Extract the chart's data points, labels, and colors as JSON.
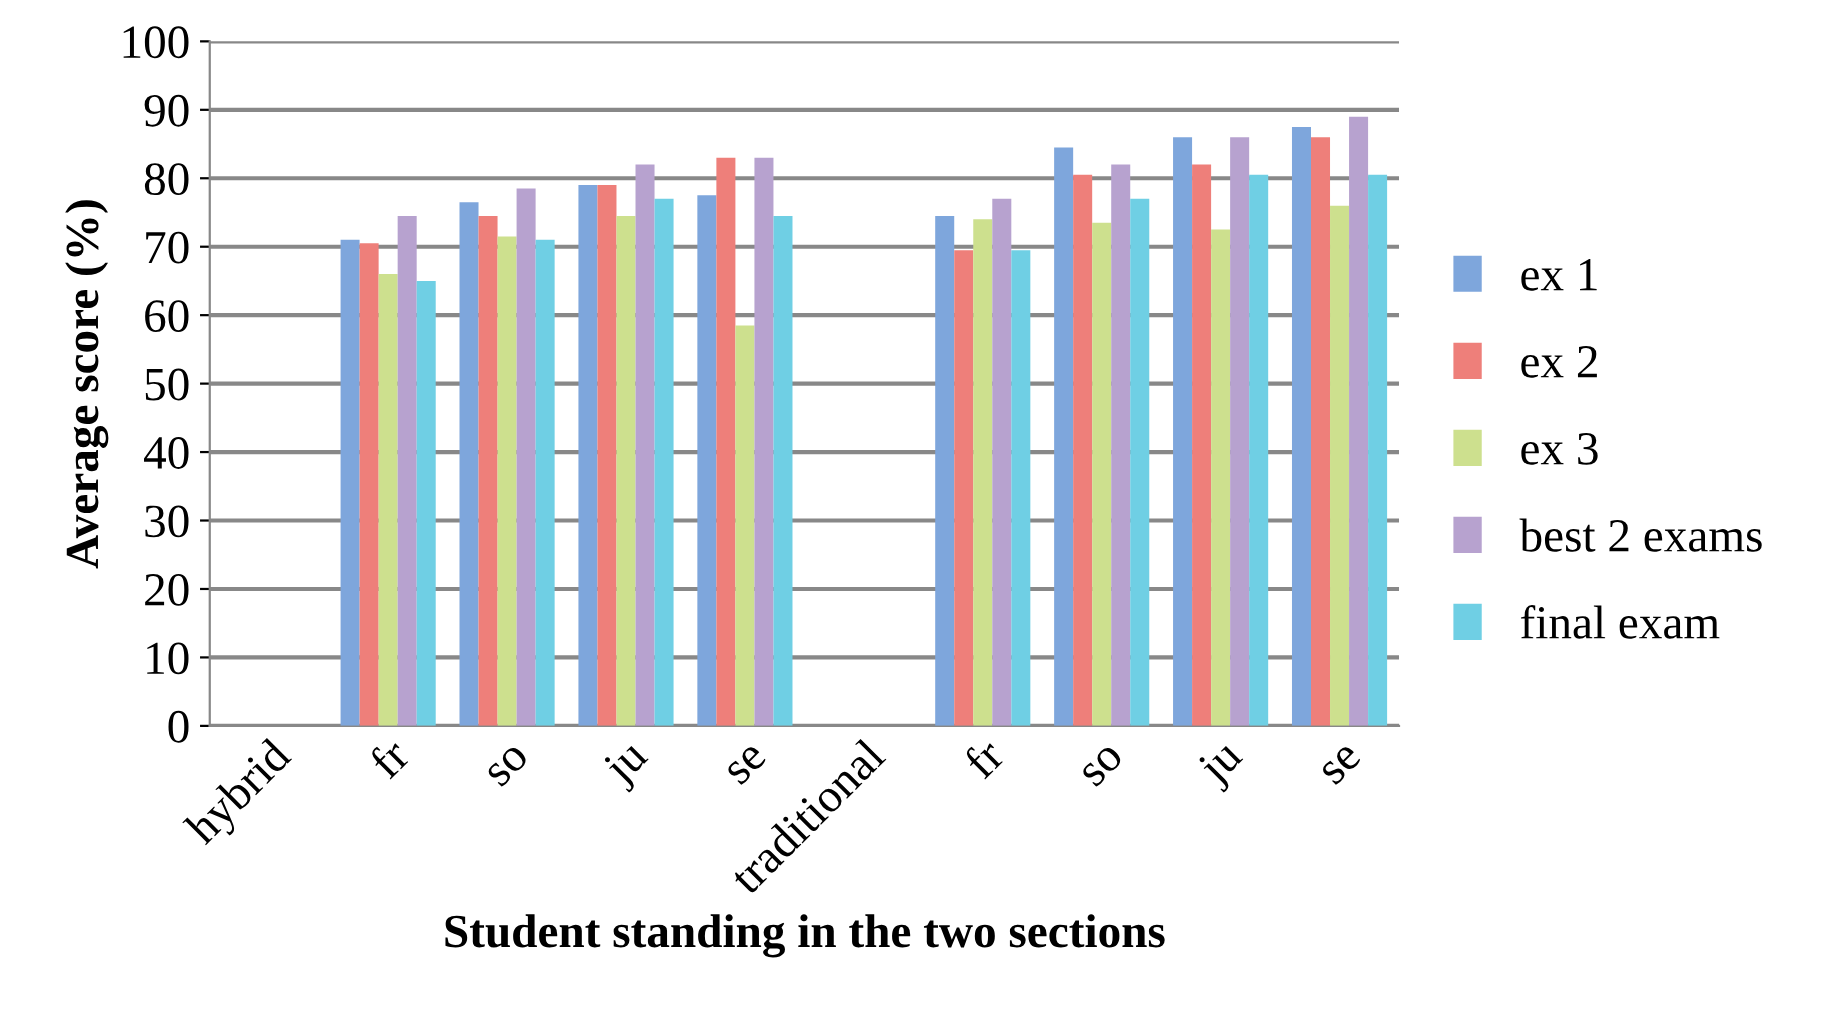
{
  "chart_data": {
    "type": "bar",
    "xlabel": "Student standing in the two sections",
    "ylabel": "Average score (%)",
    "categories": [
      "hybrid",
      "fr",
      "so",
      "ju",
      "se",
      "traditional",
      "fr",
      "so",
      "ju",
      "se"
    ],
    "series": [
      {
        "name": "ex 1",
        "color": "#7ea6dc",
        "values": [
          null,
          71,
          76.5,
          79,
          77.5,
          null,
          74.5,
          84.5,
          86,
          87.5
        ]
      },
      {
        "name": "ex 2",
        "color": "#ee7f7a",
        "values": [
          null,
          70.5,
          74.5,
          79,
          83,
          null,
          69.5,
          80.5,
          82,
          86
        ]
      },
      {
        "name": "ex 3",
        "color": "#cde08e",
        "values": [
          null,
          66,
          71.5,
          74.5,
          58.5,
          null,
          74,
          73.5,
          72.5,
          76
        ]
      },
      {
        "name": "best 2 exams",
        "color": "#b7a2cf",
        "values": [
          null,
          74.5,
          78.5,
          82,
          83,
          null,
          77,
          82,
          86,
          89
        ]
      },
      {
        "name": "final exam",
        "color": "#6fcfe4",
        "values": [
          null,
          65,
          71,
          77,
          74.5,
          null,
          69.5,
          77,
          80.5,
          80.5
        ]
      }
    ],
    "ylim": [
      0,
      100
    ],
    "yticks": [
      0,
      10,
      20,
      30,
      40,
      50,
      60,
      70,
      80,
      90,
      100
    ],
    "grid": "y",
    "legend": "right"
  }
}
